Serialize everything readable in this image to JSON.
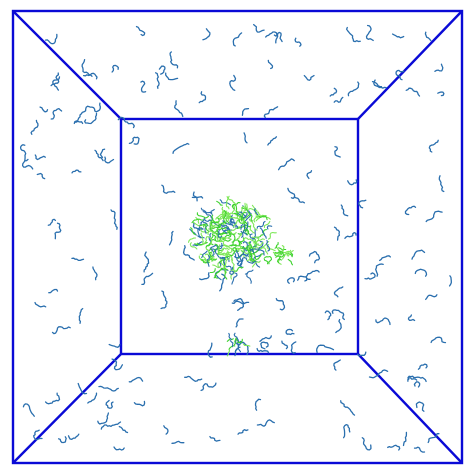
{
  "scene": {
    "background": "#ffffff",
    "box_color": "#0a0ad6",
    "molecule_color": "#2a6fae",
    "cluster_colors": [
      "#2a6fae",
      "#3fd22f",
      "#7fe85a"
    ],
    "seed": 1789
  }
}
